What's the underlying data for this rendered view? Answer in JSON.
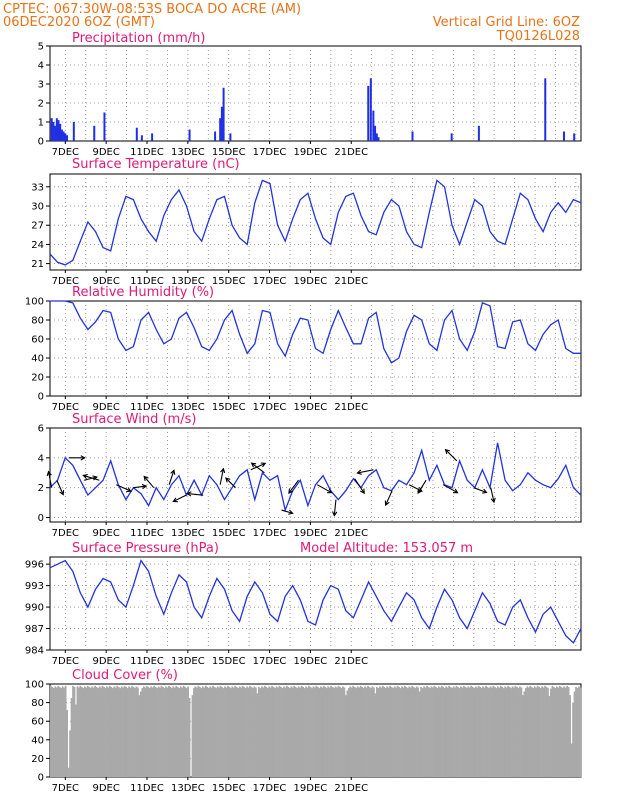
{
  "header": {
    "line1": "CPTEC:   067:30W-08:53S   BOCA DO ACRE (AM)",
    "line2": "06DEC2020 6OZ (GMT)",
    "grid_note": "Vertical Grid Line: 6OZ",
    "code": "TQ0126L028",
    "model_altitude": "Model Altitude: 153.057 m"
  },
  "colors": {
    "header": "#e8731a",
    "title": "#e0197a",
    "line": "#2233dd",
    "bar": "#1f2fe6",
    "cloud": "#a9a9a9",
    "arrow": "#000000"
  },
  "x_labels": [
    "7DEC",
    "9DEC",
    "11DEC",
    "13DEC",
    "15DEC",
    "17DEC",
    "19DEC",
    "21DEC"
  ],
  "chart_data": [
    {
      "id": "precip",
      "type": "bar",
      "title": "Precipitation (mm/h)",
      "ylim": [
        0,
        5
      ],
      "yticks": [
        0,
        1,
        2,
        3,
        4,
        5
      ],
      "x_unit": "hours since 06DEC2020 06Z (48 h per labeled day)",
      "x": [
        2,
        4,
        6,
        8,
        10,
        12,
        14,
        16,
        18,
        20,
        28,
        52,
        64,
        102,
        108,
        120,
        164,
        194,
        200,
        202,
        204,
        212,
        374,
        377,
        380,
        382,
        384,
        386,
        426,
        472,
        504,
        582,
        604,
        616
      ],
      "values": [
        1.2,
        1.0,
        0.8,
        1.2,
        1.1,
        0.9,
        0.6,
        0.5,
        0.4,
        0.3,
        1.0,
        0.8,
        1.5,
        0.7,
        0.3,
        0.4,
        0.6,
        0.5,
        1.2,
        1.8,
        2.8,
        0.4,
        2.9,
        3.3,
        1.6,
        0.8,
        0.4,
        0.2,
        0.5,
        0.4,
        0.8,
        3.3,
        0.5,
        0.4
      ]
    },
    {
      "id": "temp",
      "type": "line",
      "title": "Surface Temperature (nC)",
      "ylim": [
        20,
        35
      ],
      "yticks": [
        21,
        24,
        27,
        30,
        33
      ],
      "values": [
        22.5,
        21.2,
        20.8,
        21.5,
        24.5,
        27.5,
        26,
        23.5,
        23,
        28,
        31.5,
        31,
        28,
        26,
        24.5,
        28.5,
        31,
        32.5,
        30,
        26,
        24.5,
        28,
        31,
        31.5,
        27,
        25,
        24,
        30.5,
        34,
        33.5,
        27,
        24.5,
        28,
        31,
        32,
        28,
        25,
        24,
        29,
        31.5,
        32,
        28.5,
        26,
        25.5,
        29,
        31,
        30,
        26,
        24,
        23.5,
        29,
        34,
        33,
        27,
        24,
        27.5,
        31,
        30,
        26,
        24.5,
        24,
        28,
        32,
        31,
        28,
        26,
        29,
        30.5,
        29,
        31,
        30.5
      ]
    },
    {
      "id": "rh",
      "type": "line",
      "title": "Relative Humidity (%)",
      "ylim": [
        0,
        100
      ],
      "yticks": [
        0,
        20,
        40,
        60,
        80,
        100
      ],
      "values": [
        100,
        100,
        100,
        98,
        82,
        70,
        78,
        90,
        88,
        60,
        48,
        52,
        80,
        88,
        70,
        55,
        60,
        82,
        88,
        72,
        52,
        48,
        60,
        80,
        90,
        65,
        45,
        55,
        90,
        88,
        55,
        42,
        65,
        82,
        80,
        50,
        45,
        70,
        90,
        72,
        55,
        55,
        82,
        88,
        50,
        35,
        40,
        68,
        85,
        80,
        55,
        48,
        80,
        90,
        60,
        48,
        68,
        98,
        95,
        52,
        50,
        78,
        80,
        55,
        48,
        65,
        75,
        80,
        50,
        45,
        45
      ]
    },
    {
      "id": "wind",
      "type": "line",
      "title": "Surface Wind (m/s)",
      "ylim": [
        -0.3,
        6
      ],
      "yticks": [
        0,
        2,
        4,
        6
      ],
      "values": [
        2,
        2.5,
        4,
        3.5,
        2.5,
        1.5,
        2,
        2.5,
        3.8,
        2.2,
        1.2,
        2,
        1.6,
        0.8,
        2,
        1.2,
        2.2,
        2.8,
        1.5,
        2.5,
        1.5,
        2.8,
        2.2,
        1.2,
        2,
        2.8,
        3.2,
        1.2,
        3,
        2.5,
        2.8,
        0.5,
        1.8,
        2.5,
        0.8,
        2.2,
        2.8,
        1.8,
        1.2,
        1.8,
        2.6,
        2,
        2.8,
        3.2,
        2,
        1.8,
        2.5,
        2.2,
        3,
        4.5,
        2.5,
        3.5,
        2.2,
        2,
        3.8,
        2.5,
        2,
        3.2,
        2,
        5,
        2.5,
        1.8,
        2.2,
        3,
        2.5,
        2.2,
        2,
        2.6,
        3.5,
        2,
        1.5
      ],
      "arrows": [
        {
          "x": 2,
          "u": -0.2,
          "v": 1
        },
        {
          "x": 8,
          "u": 0.4,
          "v": -0.9
        },
        {
          "x": 22,
          "u": 1,
          "v": 0
        },
        {
          "x": 40,
          "u": 0.8,
          "v": 0.2
        },
        {
          "x": 58,
          "u": -1,
          "v": 0.3
        },
        {
          "x": 78,
          "u": 0.9,
          "v": -0.4
        },
        {
          "x": 98,
          "u": 0.8,
          "v": 0.1
        },
        {
          "x": 122,
          "u": -0.6,
          "v": 0.7
        },
        {
          "x": 140,
          "u": 0.3,
          "v": 0.9
        },
        {
          "x": 160,
          "u": -0.8,
          "v": -0.4
        },
        {
          "x": 180,
          "u": -1,
          "v": 0.1
        },
        {
          "x": 200,
          "u": 0.2,
          "v": 1
        },
        {
          "x": 218,
          "u": -0.6,
          "v": 0.6
        },
        {
          "x": 236,
          "u": 0.9,
          "v": 0.4
        },
        {
          "x": 252,
          "u": -0.8,
          "v": 0.6
        },
        {
          "x": 272,
          "u": 0.7,
          "v": -0.2
        },
        {
          "x": 292,
          "u": -0.6,
          "v": -0.8
        },
        {
          "x": 314,
          "u": 0.9,
          "v": -0.5
        },
        {
          "x": 336,
          "u": -0.1,
          "v": -1
        },
        {
          "x": 358,
          "u": 0.6,
          "v": -0.9
        },
        {
          "x": 380,
          "u": -1,
          "v": -0.2
        },
        {
          "x": 402,
          "u": -0.4,
          "v": -0.9
        },
        {
          "x": 422,
          "u": 0.8,
          "v": -0.4
        },
        {
          "x": 442,
          "u": -0.5,
          "v": -0.8
        },
        {
          "x": 462,
          "u": 0.9,
          "v": -0.5
        },
        {
          "x": 478,
          "u": -0.7,
          "v": 0.7
        },
        {
          "x": 498,
          "u": 0.8,
          "v": -0.3
        },
        {
          "x": 518,
          "u": 0.2,
          "v": -0.9
        }
      ]
    },
    {
      "id": "pres",
      "type": "line",
      "title": "Surface Pressure (hPa)",
      "ylim": [
        984,
        997
      ],
      "yticks": [
        984,
        987,
        990,
        993,
        996
      ],
      "values": [
        995.5,
        996,
        996.5,
        995,
        992,
        990,
        992.5,
        994,
        993.5,
        991,
        990,
        993,
        996.5,
        995,
        991.5,
        989,
        992,
        994.5,
        993.5,
        990,
        988.5,
        991.5,
        994,
        992.5,
        989.5,
        988,
        991.5,
        993.5,
        992,
        989,
        988,
        991.5,
        993,
        991,
        988,
        987.5,
        991,
        993,
        992.5,
        989.5,
        988.5,
        991,
        993.5,
        991.5,
        989.5,
        988,
        990,
        992,
        991,
        988.5,
        987,
        990,
        992.5,
        991,
        988.5,
        987,
        989.5,
        992,
        990.5,
        988,
        987.5,
        990,
        991,
        988.5,
        986.5,
        989,
        990,
        988,
        986,
        985,
        987
      ]
    },
    {
      "id": "cloud",
      "type": "bar",
      "title": "Cloud Cover (%)",
      "ylim": [
        0,
        100
      ],
      "yticks": [
        0,
        20,
        40,
        60,
        80,
        100
      ],
      "baseline": 98,
      "dips": [
        {
          "x": 11,
          "v": 72
        },
        {
          "x": 12,
          "v": 10
        },
        {
          "x": 13,
          "v": 50
        },
        {
          "x": 14,
          "v": 85
        },
        {
          "x": 17,
          "v": 78
        },
        {
          "x": 60,
          "v": 88
        },
        {
          "x": 61,
          "v": 92
        },
        {
          "x": 94,
          "v": 85
        },
        {
          "x": 95,
          "v": 0
        },
        {
          "x": 96,
          "v": 88
        },
        {
          "x": 140,
          "v": 90
        },
        {
          "x": 200,
          "v": 88
        },
        {
          "x": 201,
          "v": 93
        },
        {
          "x": 220,
          "v": 90
        },
        {
          "x": 250,
          "v": 92
        },
        {
          "x": 320,
          "v": 88
        },
        {
          "x": 321,
          "v": 92
        },
        {
          "x": 338,
          "v": 87
        },
        {
          "x": 339,
          "v": 95
        },
        {
          "x": 352,
          "v": 88
        },
        {
          "x": 353,
          "v": 36
        },
        {
          "x": 354,
          "v": 80
        },
        {
          "x": 355,
          "v": 92
        }
      ]
    }
  ]
}
